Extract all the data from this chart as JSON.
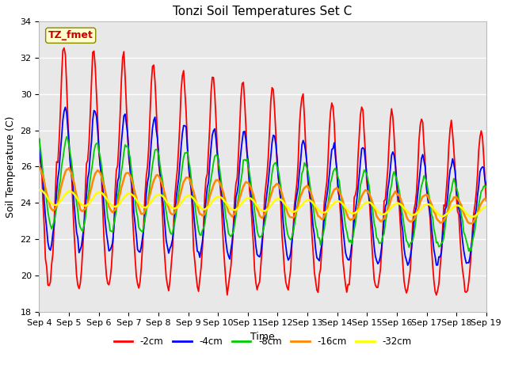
{
  "title": "Tonzi Soil Temperatures Set C",
  "xlabel": "Time",
  "ylabel": "Soil Temperature (C)",
  "ylim": [
    18,
    34
  ],
  "yticks": [
    18,
    20,
    22,
    24,
    26,
    28,
    30,
    32,
    34
  ],
  "xtick_labels": [
    "Sep 4",
    "Sep 5",
    "Sep 6",
    "Sep 7",
    "Sep 8",
    "Sep 9",
    "Sep 10",
    "Sep 11",
    "Sep 12",
    "Sep 13",
    "Sep 14",
    "Sep 15",
    "Sep 16",
    "Sep 17",
    "Sep 18",
    "Sep 19"
  ],
  "annotation_text": "TZ_fmet",
  "annotation_color": "#cc0000",
  "annotation_bg": "#ffffcc",
  "colors": {
    "-2cm": "#ff0000",
    "-4cm": "#0000ff",
    "-8cm": "#00cc00",
    "-16cm": "#ff8800",
    "-32cm": "#ffff00"
  },
  "legend_labels": [
    "-2cm",
    "-4cm",
    "-8cm",
    "-16cm",
    "-32cm"
  ],
  "bg_color": "#e8e8e8",
  "grid_color": "#ffffff",
  "title_fontsize": 11,
  "axis_label_fontsize": 9,
  "tick_fontsize": 8
}
